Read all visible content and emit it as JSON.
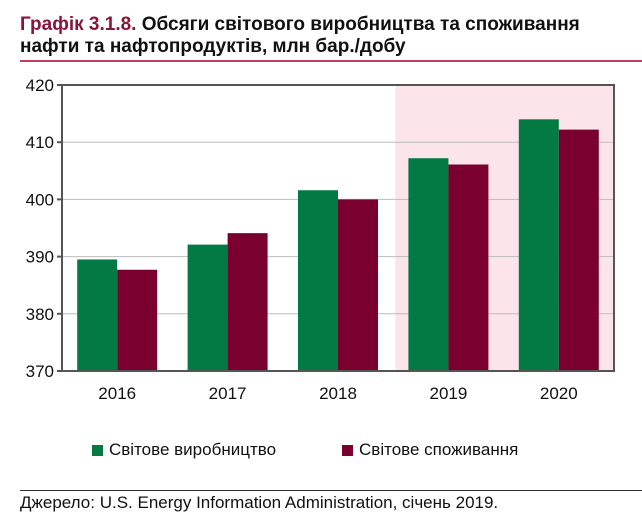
{
  "title": {
    "label": "Графік 3.1.8.",
    "text": " Обсяги світового виробництва та споживання нафти та нафтопродуктів, млн бар./добу"
  },
  "source": "Джерело: U.S. Energy Information Administration, січень 2019.",
  "colors": {
    "production": "#037a43",
    "consumption": "#7a0030",
    "forecast_shade": "#fbe4ea"
  },
  "chart_data": {
    "type": "bar",
    "categories": [
      "2016",
      "2017",
      "2018",
      "2019",
      "2020"
    ],
    "series": [
      {
        "name": "Світове виробництво",
        "values": [
          389.5,
          392.1,
          401.6,
          407.2,
          414.0
        ]
      },
      {
        "name": "Світове споживання",
        "values": [
          387.7,
          394.1,
          400.0,
          406.1,
          412.2
        ]
      }
    ],
    "ylim": [
      370,
      420
    ],
    "yticks": [
      370,
      380,
      390,
      400,
      410,
      420
    ],
    "grid": true,
    "shaded_categories": [
      "2019",
      "2020"
    ],
    "legend": "bottom"
  }
}
